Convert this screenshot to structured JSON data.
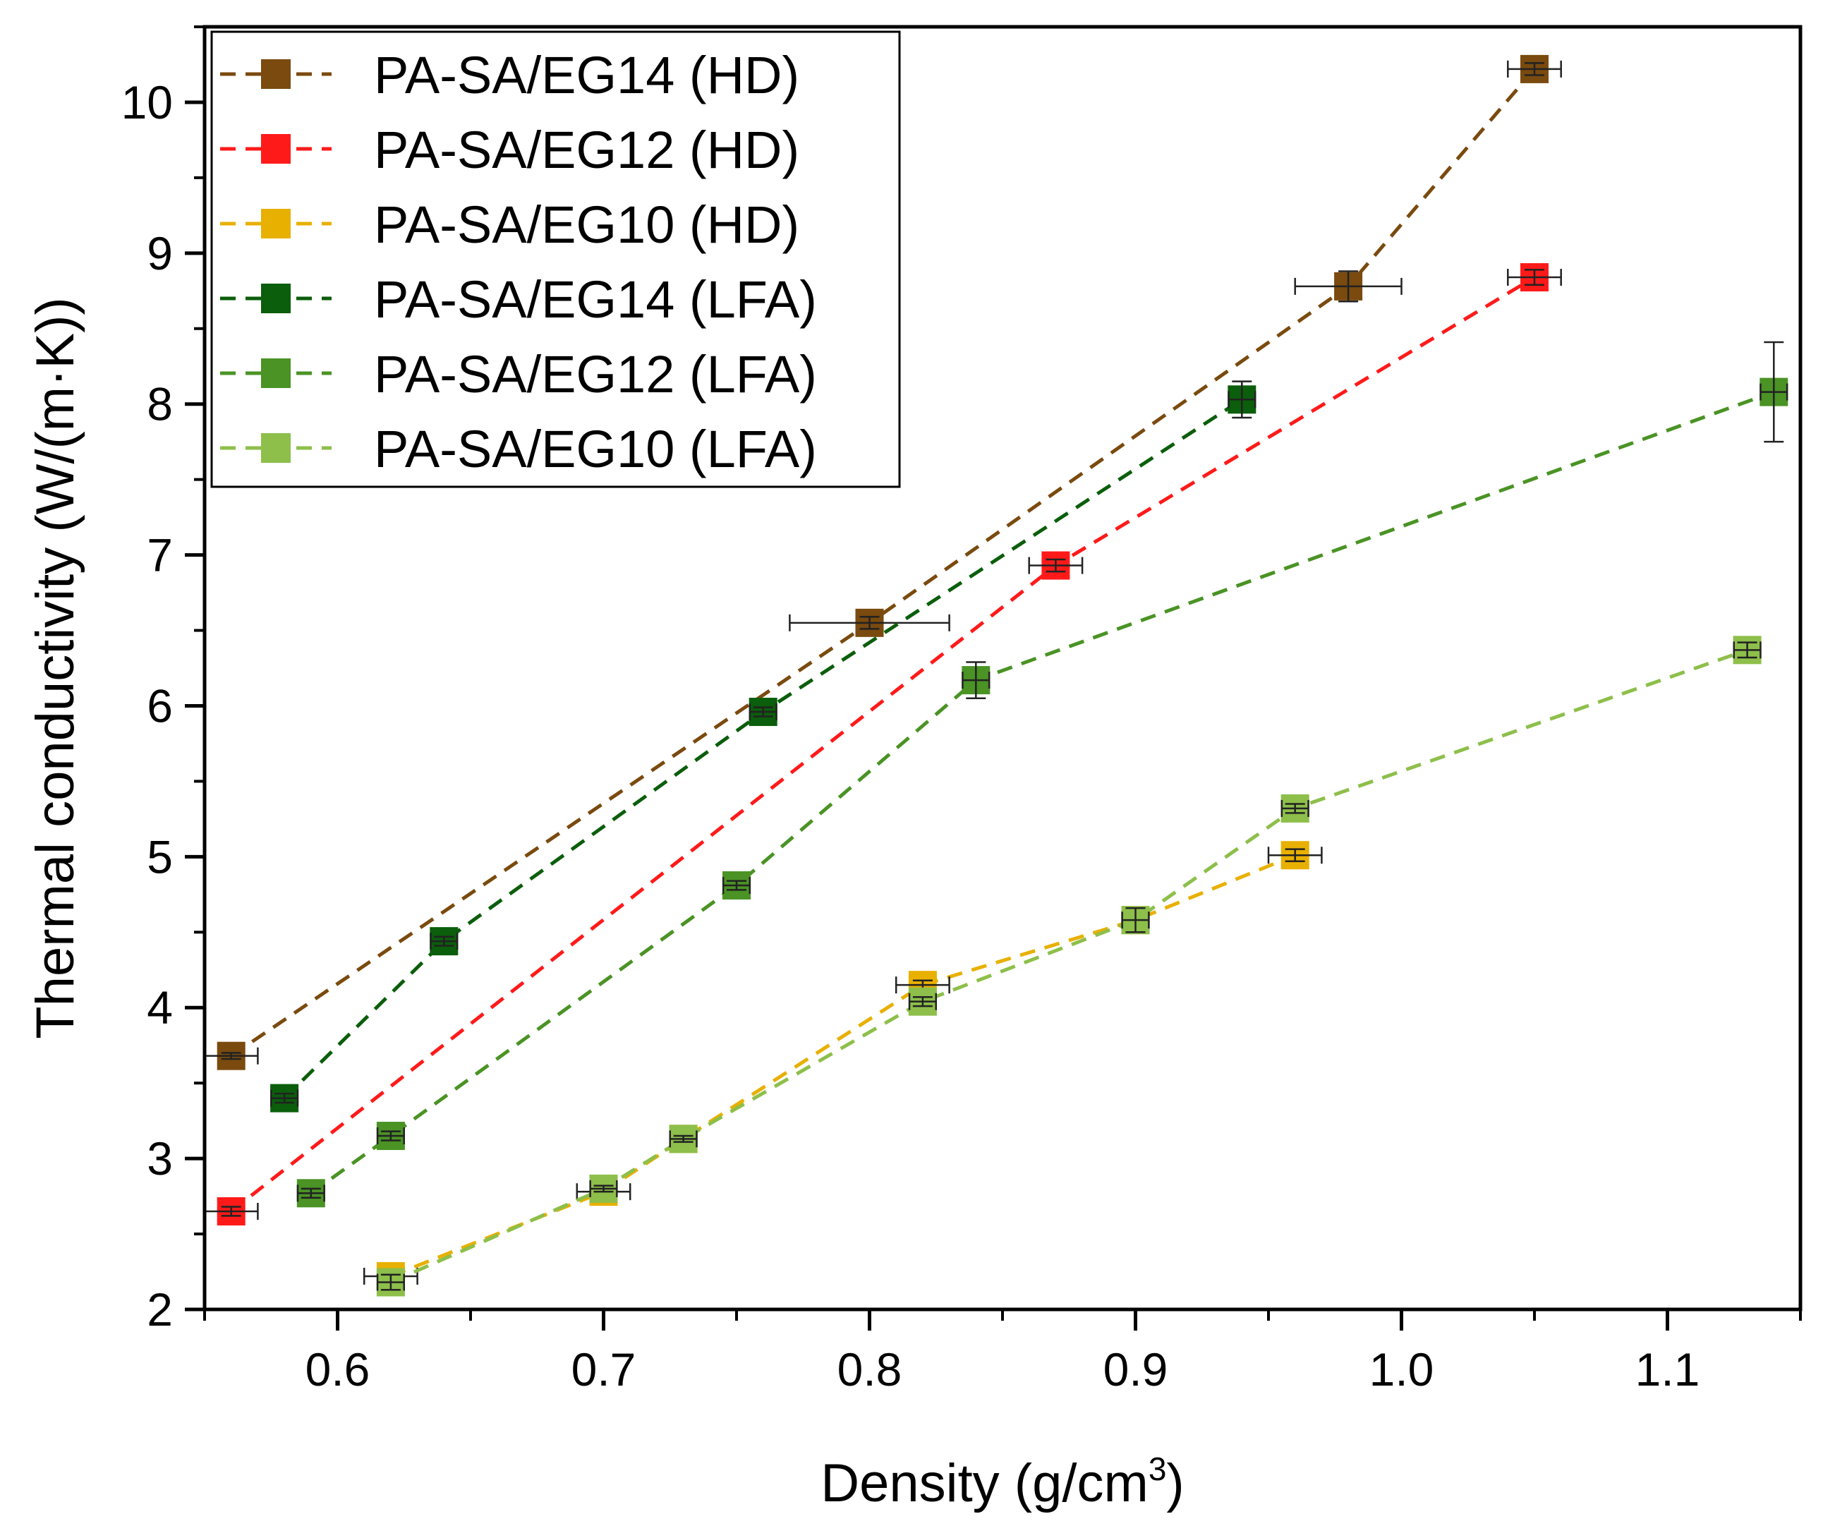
{
  "chart_data": {
    "type": "line",
    "xlabel": "Density (g/cm",
    "xlabel_sup": "3",
    "xlabel_close": ")",
    "ylabel": "Thermal conductivity (W/(m·K))",
    "xlim": [
      0.55,
      1.15
    ],
    "ylim": [
      2,
      10.5
    ],
    "xticks": [
      0.6,
      0.7,
      0.8,
      0.9,
      1.0,
      1.1
    ],
    "xtick_labels": [
      "0.6",
      "0.7",
      "0.8",
      "0.9",
      "1.0",
      "1.1"
    ],
    "yticks": [
      2,
      3,
      4,
      5,
      6,
      7,
      8,
      9,
      10
    ],
    "ytick_labels": [
      "2",
      "3",
      "4",
      "5",
      "6",
      "7",
      "8",
      "9",
      "10"
    ],
    "legend_position": "top-left",
    "series": [
      {
        "name": "PA-SA/EG14 (HD)",
        "color": "#7a4a0e",
        "points": [
          {
            "x": 0.56,
            "y": 3.68,
            "xerr": 0.01,
            "yerr": 0.02
          },
          {
            "x": 0.8,
            "y": 6.55,
            "xerr": 0.03,
            "yerr": 0.04
          },
          {
            "x": 0.98,
            "y": 8.78,
            "xerr": 0.02,
            "yerr": 0.1
          },
          {
            "x": 1.05,
            "y": 10.22,
            "xerr": 0.01,
            "yerr": 0.04
          }
        ]
      },
      {
        "name": "PA-SA/EG12 (HD)",
        "color": "#ff1a1a",
        "points": [
          {
            "x": 0.56,
            "y": 2.65,
            "xerr": 0.01,
            "yerr": 0.03
          },
          {
            "x": 0.87,
            "y": 6.93,
            "xerr": 0.01,
            "yerr": 0.04
          },
          {
            "x": 1.05,
            "y": 8.84,
            "xerr": 0.01,
            "yerr": 0.05
          }
        ]
      },
      {
        "name": "PA-SA/EG10 (HD)",
        "color": "#e8b000",
        "points": [
          {
            "x": 0.62,
            "y": 2.22,
            "xerr": 0.01,
            "yerr": 0.02
          },
          {
            "x": 0.7,
            "y": 2.78,
            "xerr": 0.01,
            "yerr": 0.02
          },
          {
            "x": 0.73,
            "y": 3.13,
            "xerr": 0.005,
            "yerr": 0.02
          },
          {
            "x": 0.82,
            "y": 4.15,
            "xerr": 0.01,
            "yerr": 0.03
          },
          {
            "x": 0.9,
            "y": 4.58,
            "xerr": 0.005,
            "yerr": 0.04
          },
          {
            "x": 0.96,
            "y": 5.01,
            "xerr": 0.01,
            "yerr": 0.04
          }
        ]
      },
      {
        "name": "PA-SA/EG14 (LFA)",
        "color": "#0b5e0b",
        "points": [
          {
            "x": 0.58,
            "y": 3.4,
            "xerr": 0.005,
            "yerr": 0.03
          },
          {
            "x": 0.64,
            "y": 4.44,
            "xerr": 0.005,
            "yerr": 0.03
          },
          {
            "x": 0.76,
            "y": 5.96,
            "xerr": 0.005,
            "yerr": 0.03
          },
          {
            "x": 0.94,
            "y": 8.03,
            "xerr": 0.005,
            "yerr": 0.12
          }
        ]
      },
      {
        "name": "PA-SA/EG12 (LFA)",
        "color": "#4a9324",
        "points": [
          {
            "x": 0.59,
            "y": 2.77,
            "xerr": 0.005,
            "yerr": 0.03
          },
          {
            "x": 0.62,
            "y": 3.15,
            "xerr": 0.005,
            "yerr": 0.03
          },
          {
            "x": 0.75,
            "y": 4.81,
            "xerr": 0.005,
            "yerr": 0.03
          },
          {
            "x": 0.84,
            "y": 6.17,
            "xerr": 0.005,
            "yerr": 0.12
          },
          {
            "x": 1.14,
            "y": 8.08,
            "xerr": 0.005,
            "yerr": 0.33
          }
        ]
      },
      {
        "name": "PA-SA/EG10 (LFA)",
        "color": "#8dbf4a",
        "points": [
          {
            "x": 0.62,
            "y": 2.18,
            "xerr": 0.005,
            "yerr": 0.05
          },
          {
            "x": 0.7,
            "y": 2.8,
            "xerr": 0.005,
            "yerr": 0.02
          },
          {
            "x": 0.73,
            "y": 3.13,
            "xerr": 0.005,
            "yerr": 0.02
          },
          {
            "x": 0.82,
            "y": 4.04,
            "xerr": 0.005,
            "yerr": 0.03
          },
          {
            "x": 0.9,
            "y": 4.58,
            "xerr": 0.005,
            "yerr": 0.08
          },
          {
            "x": 0.96,
            "y": 5.32,
            "xerr": 0.005,
            "yerr": 0.03
          },
          {
            "x": 1.13,
            "y": 6.37,
            "xerr": 0.005,
            "yerr": 0.05
          }
        ]
      }
    ]
  }
}
